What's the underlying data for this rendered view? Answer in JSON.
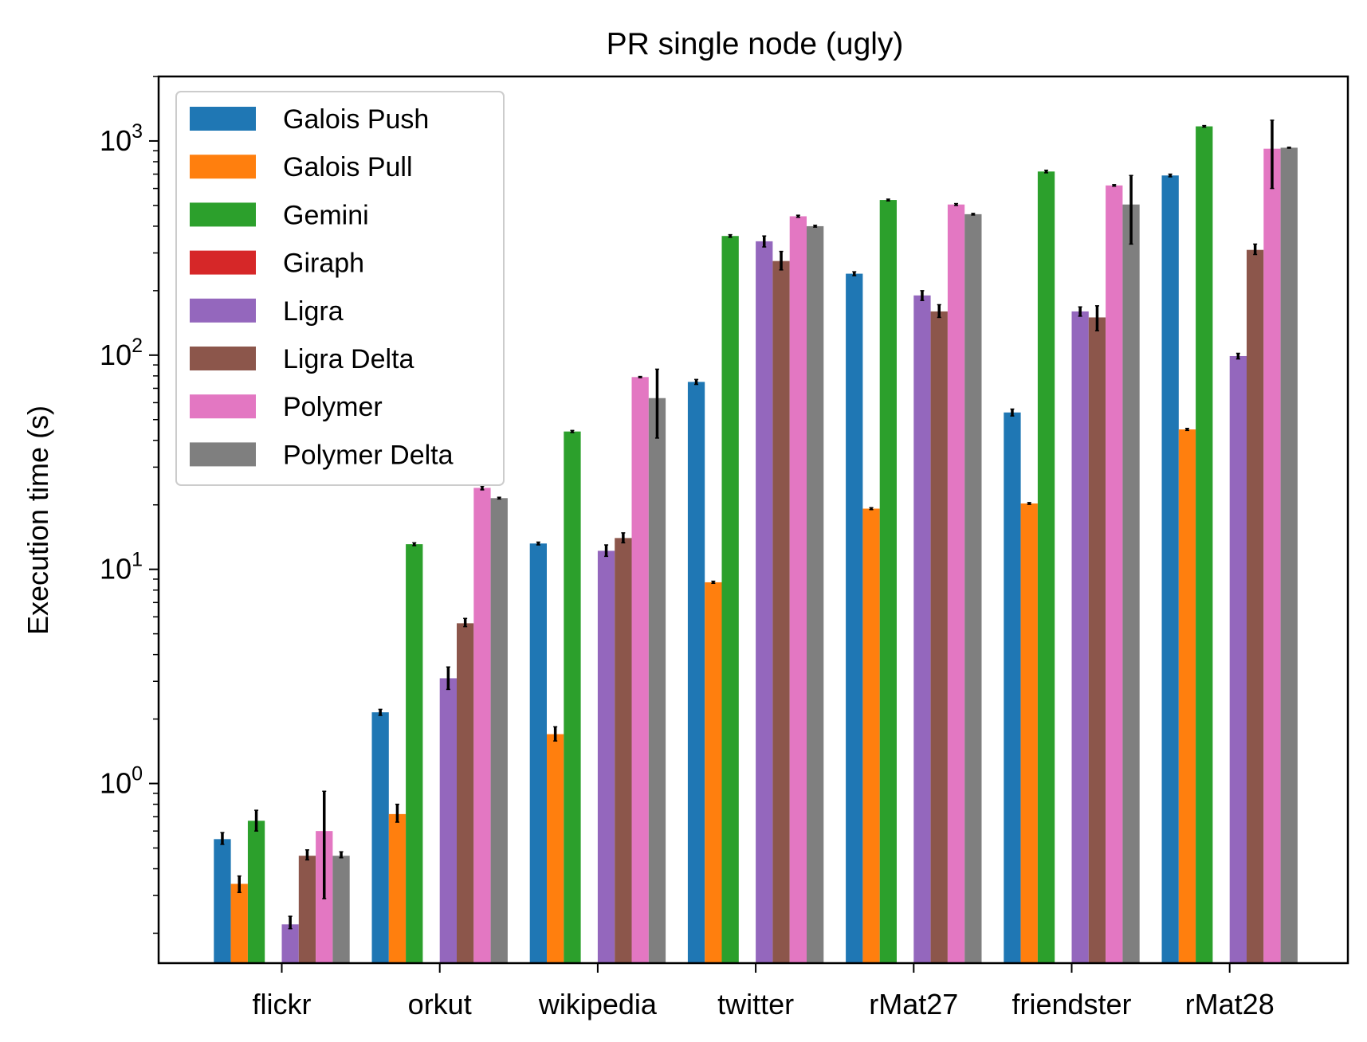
{
  "chart_data": {
    "type": "bar",
    "title": "PR single node (ugly)",
    "xlabel": "",
    "ylabel": "Execution time (s)",
    "yscale": "log",
    "ylim": [
      0.145,
      2000
    ],
    "yticks": [
      {
        "value": 1,
        "base": "10",
        "exp": "0"
      },
      {
        "value": 10,
        "base": "10",
        "exp": "1"
      },
      {
        "value": 100,
        "base": "10",
        "exp": "2"
      },
      {
        "value": 1000,
        "base": "10",
        "exp": "3"
      }
    ],
    "categories": [
      "flickr",
      "orkut",
      "wikipedia",
      "twitter",
      "rMat27",
      "friendster",
      "rMat28"
    ],
    "legend_position": "upper-left",
    "series": [
      {
        "name": "Galois Push",
        "color": "#1f77b4",
        "values": [
          0.55,
          2.15,
          13.2,
          75,
          240,
          54,
          690
        ],
        "errors": [
          [
            0.52,
            0.59
          ],
          [
            2.08,
            2.22
          ],
          [
            13.0,
            13.4
          ],
          [
            73,
            77
          ],
          [
            235,
            245
          ],
          [
            52,
            56
          ],
          [
            680,
            700
          ]
        ]
      },
      {
        "name": "Galois Pull",
        "color": "#ff7f0e",
        "values": [
          0.34,
          0.72,
          1.7,
          8.7,
          19.2,
          20.3,
          45
        ],
        "errors": [
          [
            0.31,
            0.37
          ],
          [
            0.66,
            0.8
          ],
          [
            1.58,
            1.84
          ],
          [
            8.6,
            8.8
          ],
          [
            19.0,
            19.4
          ],
          [
            20.1,
            20.5
          ],
          [
            44.5,
            45.5
          ]
        ]
      },
      {
        "name": "Gemini",
        "color": "#2ca02c",
        "values": [
          0.67,
          13.1,
          44,
          360,
          530,
          720,
          1170
        ],
        "errors": [
          [
            0.6,
            0.75
          ],
          [
            12.9,
            13.3
          ],
          [
            43.5,
            44.5
          ],
          [
            355,
            365
          ],
          [
            525,
            535
          ],
          [
            710,
            730
          ],
          [
            1160,
            1180
          ]
        ]
      },
      {
        "name": "Giraph",
        "color": "#d62728",
        "values": [
          null,
          null,
          null,
          null,
          null,
          null,
          null
        ],
        "errors": [
          null,
          null,
          null,
          null,
          null,
          null,
          null
        ]
      },
      {
        "name": "Ligra",
        "color": "#9467bd",
        "values": [
          0.22,
          3.1,
          12.2,
          340,
          190,
          160,
          99
        ],
        "errors": [
          [
            0.21,
            0.24
          ],
          [
            2.75,
            3.5
          ],
          [
            11.5,
            13.0
          ],
          [
            320,
            360
          ],
          [
            180,
            200
          ],
          [
            152,
            168
          ],
          [
            96,
            102
          ]
        ]
      },
      {
        "name": "Ligra Delta",
        "color": "#8c564b",
        "values": [
          0.46,
          5.6,
          14,
          275,
          160,
          150,
          310
        ],
        "errors": [
          [
            0.44,
            0.49
          ],
          [
            5.4,
            5.9
          ],
          [
            13.3,
            14.8
          ],
          [
            250,
            305
          ],
          [
            150,
            172
          ],
          [
            130,
            170
          ],
          [
            295,
            330
          ]
        ]
      },
      {
        "name": "Polymer",
        "color": "#e377c2",
        "values": [
          0.6,
          24,
          79,
          445,
          505,
          620,
          920
        ],
        "errors": [
          [
            0.29,
            0.92
          ],
          [
            23.5,
            24.5
          ],
          [
            78.5,
            79.5
          ],
          [
            440,
            450
          ],
          [
            500,
            510
          ],
          [
            615,
            625
          ],
          [
            600,
            1250
          ]
        ]
      },
      {
        "name": "Polymer Delta",
        "color": "#7f7f7f",
        "values": [
          0.46,
          21.5,
          63,
          400,
          455,
          505,
          930
        ],
        "errors": [
          [
            0.45,
            0.48
          ],
          [
            21.3,
            21.7
          ],
          [
            41,
            86
          ],
          [
            396,
            404
          ],
          [
            451,
            459
          ],
          [
            330,
            690
          ],
          [
            925,
            935
          ]
        ]
      }
    ]
  }
}
